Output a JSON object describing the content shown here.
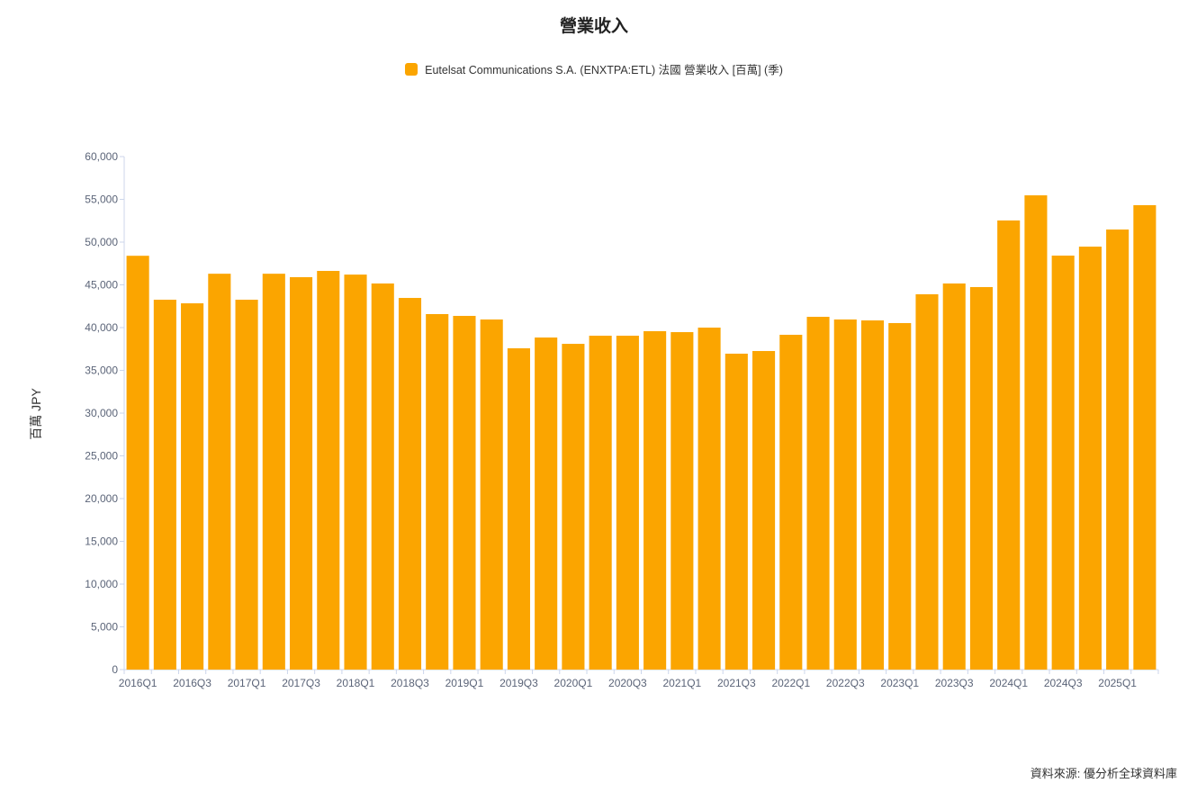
{
  "title": "營業收入",
  "source": "資料來源: 優分析全球資料庫",
  "chart_data": {
    "type": "bar",
    "title": "營業收入",
    "ylabel": "百萬 JPY",
    "xlabel": "",
    "ylim": [
      0,
      60000
    ],
    "yticks": [
      0,
      5000,
      10000,
      15000,
      20000,
      25000,
      30000,
      35000,
      40000,
      45000,
      50000,
      55000,
      60000
    ],
    "grid": false,
    "legend_position": "top",
    "color": "#FBA500",
    "categories": [
      "2016Q1",
      "2016Q2",
      "2016Q3",
      "2016Q4",
      "2017Q1",
      "2017Q2",
      "2017Q3",
      "2017Q4",
      "2018Q1",
      "2018Q2",
      "2018Q3",
      "2018Q4",
      "2019Q1",
      "2019Q2",
      "2019Q3",
      "2019Q4",
      "2020Q1",
      "2020Q2",
      "2020Q3",
      "2020Q4",
      "2021Q1",
      "2021Q2",
      "2021Q3",
      "2021Q4",
      "2022Q1",
      "2022Q2",
      "2022Q3",
      "2022Q4",
      "2023Q1",
      "2023Q2",
      "2023Q3",
      "2023Q4",
      "2024Q1",
      "2024Q2",
      "2024Q3",
      "2024Q4",
      "2025Q1",
      "2025Q2"
    ],
    "series": [
      {
        "name": "Eutelsat Communications S.A. (ENXTPA:ETL) 法國 營業收入 [百萬] (季)",
        "values": [
          48400,
          43260,
          42840,
          46300,
          43260,
          46300,
          45900,
          46630,
          46200,
          45160,
          43470,
          41580,
          41370,
          40950,
          37580,
          38840,
          38100,
          39050,
          39050,
          39580,
          39470,
          40000,
          36950,
          37260,
          39160,
          41260,
          40950,
          40840,
          40530,
          43900,
          45160,
          44740,
          52530,
          55470,
          48420,
          49470,
          51470,
          54320
        ]
      }
    ]
  }
}
